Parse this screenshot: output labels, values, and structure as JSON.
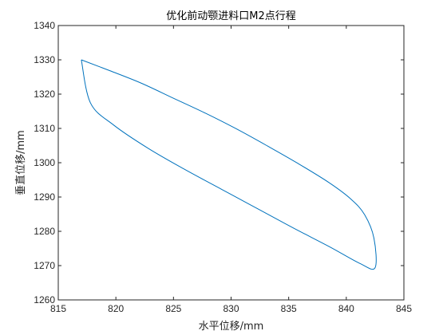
{
  "chart_data": {
    "type": "line",
    "title": "优化前动颚进料口M2点行程",
    "xlabel": "水平位移/mm",
    "ylabel": "垂直位移/mm",
    "xlim": [
      815,
      845
    ],
    "ylim": [
      1260,
      1340
    ],
    "xticks": [
      815,
      820,
      825,
      830,
      835,
      840,
      845
    ],
    "yticks": [
      1260,
      1270,
      1280,
      1290,
      1300,
      1310,
      1320,
      1330,
      1340
    ],
    "grid": false,
    "box": true,
    "series": [
      {
        "color": "#0072BD",
        "x": [
          817.0,
          819.5,
          822.2,
          825.0,
          827.8,
          830.5,
          833.2,
          835.8,
          838.5,
          840.4,
          841.6,
          842.4,
          842.5,
          841.2,
          838.6,
          835.5,
          832.4,
          829.2,
          826.0,
          822.8,
          819.8,
          817.8,
          817.0
        ],
        "y": [
          1330.0,
          1326.8,
          1323.2,
          1318.8,
          1314.4,
          1309.8,
          1304.8,
          1299.8,
          1294.2,
          1289.4,
          1284.8,
          1278.0,
          1269.4,
          1270.6,
          1275.4,
          1280.8,
          1286.4,
          1292.2,
          1298.0,
          1304.2,
          1311.0,
          1317.4,
          1330.0
        ]
      }
    ]
  }
}
